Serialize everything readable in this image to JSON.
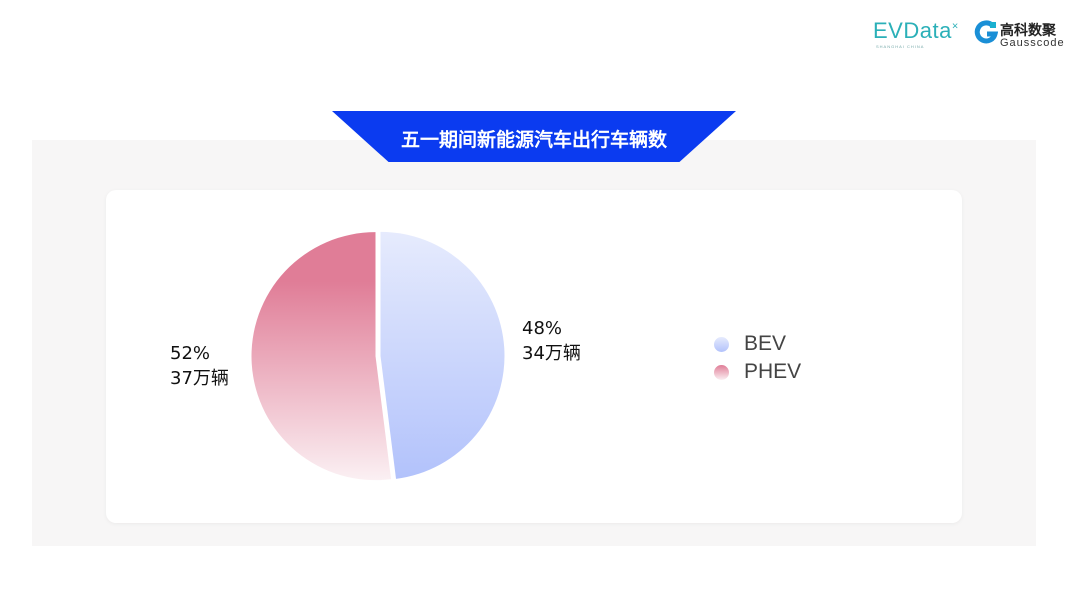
{
  "logos": {
    "evdata": "EVData",
    "evdata_sub": "SHANGHAI CHINA",
    "gauss_cn": "高科数聚",
    "gauss_en": "Gausscode"
  },
  "title": "五一期间新能源汽车出行车辆数",
  "chart_data": {
    "type": "pie",
    "title": "五一期间新能源汽车出行车辆数",
    "slices": [
      {
        "name": "BEV",
        "percent": 48,
        "label_pct": "48%",
        "label_value": "34万辆",
        "color_top": "#e6ebfd",
        "color_bottom": "#b2c2fb"
      },
      {
        "name": "PHEV",
        "percent": 52,
        "label_pct": "52%",
        "label_value": "37万辆",
        "color_top": "#e07d97",
        "color_bottom": "#fbf0f3"
      }
    ],
    "legend_position": "right"
  }
}
